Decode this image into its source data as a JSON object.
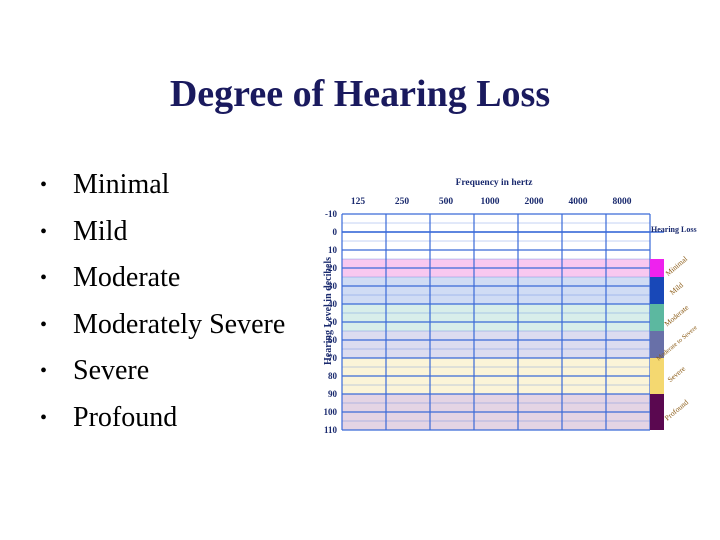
{
  "slide": {
    "title": "Degree of Hearing Loss",
    "bullets": [
      "Minimal",
      "Mild",
      "Moderate",
      "Moderately Severe",
      "Severe",
      "Profound"
    ]
  },
  "chart_data": {
    "type": "table",
    "title": "Frequency in hertz",
    "xlabel": "Frequency in hertz",
    "ylabel": "Hearing Level in decibels",
    "x_ticks": [
      "125",
      "250",
      "500",
      "1000",
      "2000",
      "4000",
      "8000"
    ],
    "y_ticks": [
      "-10",
      "0",
      "10",
      "20",
      "30",
      "40",
      "50",
      "60",
      "70",
      "80",
      "90",
      "100",
      "110"
    ],
    "ylim": [
      -10,
      110
    ],
    "legend_title": "Hearing Loss",
    "bands": [
      {
        "name": "Minimal",
        "from": 15,
        "to": 25,
        "fill": "#f8c8f0",
        "bar": "#ee22ee"
      },
      {
        "name": "Mild",
        "from": 25,
        "to": 40,
        "fill": "#d0dcf4",
        "bar": "#1848b8"
      },
      {
        "name": "Moderate",
        "from": 40,
        "to": 55,
        "fill": "#d8eeea",
        "bar": "#5cb8a0"
      },
      {
        "name": "Moderate to Severe",
        "from": 55,
        "to": 70,
        "fill": "#dcdcf0",
        "bar": "#6870a8"
      },
      {
        "name": "Severe",
        "from": 70,
        "to": 90,
        "fill": "#fbf4d8",
        "bar": "#f4d870"
      },
      {
        "name": "Profound",
        "from": 90,
        "to": 110,
        "fill": "#e4d4e4",
        "bar": "#5a0850"
      }
    ],
    "colors": {
      "grid": "#3a6ad8",
      "axis_text": "#1a2a6e",
      "legend_text": "#8a5a14"
    }
  }
}
